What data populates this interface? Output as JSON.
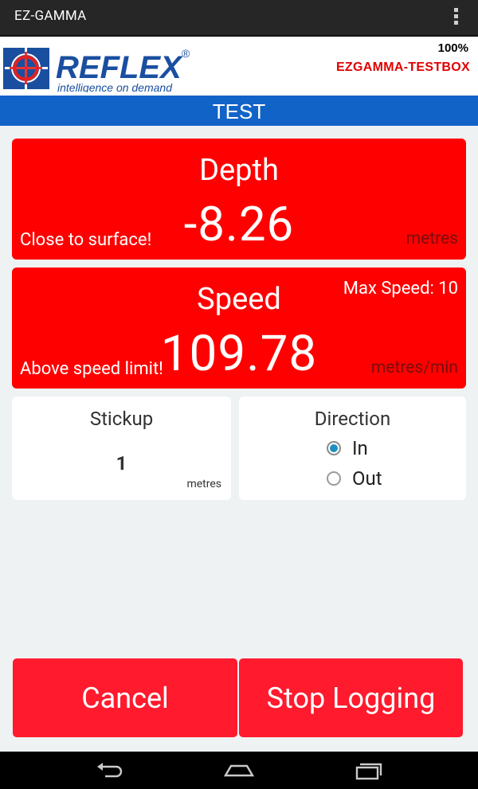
{
  "app": {
    "title": "EZ-GAMMA"
  },
  "brand": {
    "logo_name": "REFLEX",
    "logo_tagline": "intelligence on demand",
    "registered_mark": "®",
    "battery": "100%",
    "device": "EZGAMMA-TESTBOX"
  },
  "mode": {
    "label": "TEST"
  },
  "depth": {
    "title": "Depth",
    "value": "-8.26",
    "warning": "Close to surface!",
    "unit": "metres"
  },
  "speed": {
    "title": "Speed",
    "value": "109.78",
    "warning": "Above speed limit!",
    "unit": "metres/min",
    "max_label": "Max Speed: 10"
  },
  "stickup": {
    "title": "Stickup",
    "value": "1",
    "unit": "metres"
  },
  "direction": {
    "title": "Direction",
    "options": [
      {
        "label": "In",
        "selected": true
      },
      {
        "label": "Out",
        "selected": false
      }
    ]
  },
  "actions": {
    "cancel": "Cancel",
    "stop": "Stop Logging"
  },
  "colors": {
    "alert_red": "#ff0000",
    "button_red": "#ff1a2e",
    "header_blue": "#1263c7",
    "logo_blue": "#1a4fa0",
    "device_red": "#e00000"
  },
  "icons": [
    "overflow-menu-icon",
    "crosshair-logo-icon",
    "back-icon",
    "home-icon",
    "recents-icon"
  ]
}
